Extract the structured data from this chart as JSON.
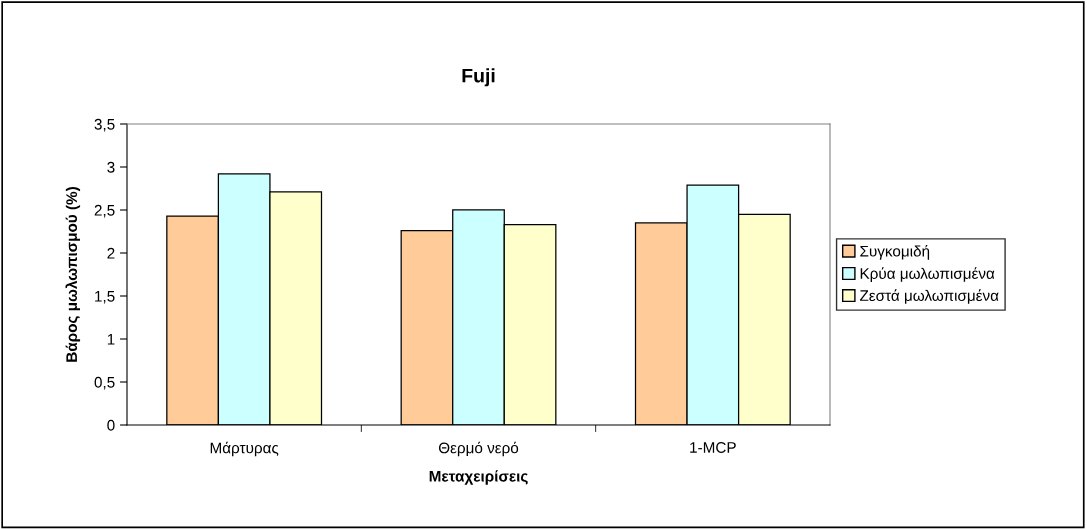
{
  "chart_data": {
    "type": "bar",
    "title": "Fuji",
    "xlabel": "Μεταχειρίσεις",
    "ylabel": "Βάρος μωλωπισμού (%)",
    "categories": [
      "Μάρτυρας",
      "Θερμό νερό",
      "1-MCP"
    ],
    "series": [
      {
        "name": "Συγκομιδή",
        "color": "#ffcc99",
        "values": [
          2.43,
          2.26,
          2.35
        ]
      },
      {
        "name": "Κρύα μωλωπισμένα",
        "color": "#ccffff",
        "values": [
          2.92,
          2.5,
          2.79
        ]
      },
      {
        "name": "Ζεστά μωλωπισμένα",
        "color": "#ffffcc",
        "values": [
          2.71,
          2.33,
          2.45
        ]
      }
    ],
    "ylim": [
      0,
      3.5
    ],
    "yticks": [
      0,
      {
        "value": 0.5,
        "label": "0,5"
      },
      1,
      {
        "value": 1.5,
        "label": "1,5"
      },
      2,
      {
        "value": 2.5,
        "label": "2,5"
      },
      3,
      {
        "value": 3.5,
        "label": "3,5"
      }
    ],
    "grid": false,
    "legend": "right"
  }
}
